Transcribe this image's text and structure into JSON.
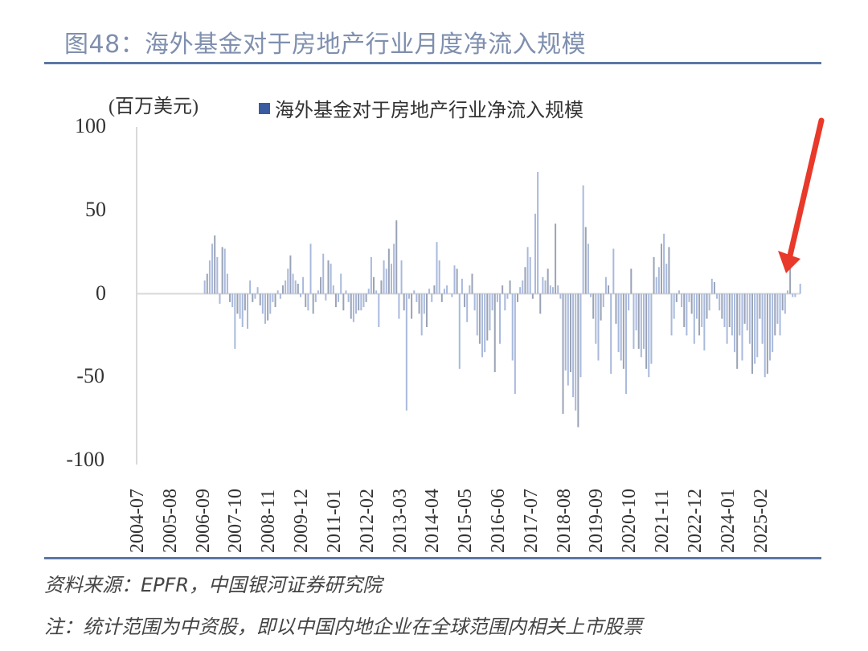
{
  "title": "图48：海外基金对于房地产行业月度净流入规模",
  "unit_label": "(百万美元)",
  "legend_label": "海外基金对于房地产行业净流入规模",
  "source": "资料来源：EPFR，中国银河证券研究院",
  "note": "注：统计范围为中资股，即以中国内地企业在全球范围内相关上市股票",
  "colors": {
    "title": "#7f8fae",
    "rule": "#5c77a5",
    "bar_light": "#a9b9dc",
    "bar_dark": "#9aa3b5",
    "legend": "#3a5ba0",
    "arrow": "#e8392a"
  },
  "chart_data": {
    "type": "bar",
    "title": "海外基金对于房地产行业净流入规模",
    "xlabel": "",
    "ylabel": "(百万美元)",
    "ylim": [
      -100,
      100
    ],
    "yticks": [
      100,
      50,
      0,
      -50,
      -100
    ],
    "grid": false,
    "legend_position": "top",
    "start_month": "2004-07",
    "xtick_labels": [
      "2004-07",
      "2005-08",
      "2006-09",
      "2007-10",
      "2008-11",
      "2009-12",
      "2011-01",
      "2012-02",
      "2013-03",
      "2014-04",
      "2015-05",
      "2016-06",
      "2017-07",
      "2018-08",
      "2019-09",
      "2020-10",
      "2021-11",
      "2022-12",
      "2024-01",
      "2025-02"
    ],
    "series": [
      {
        "name": "海外基金对于房地产行业净流入规模",
        "values": [
          0,
          0,
          0,
          0,
          0,
          0,
          0,
          0,
          0,
          0,
          0,
          0,
          0,
          0,
          0,
          0,
          0,
          0,
          0,
          0,
          0,
          0,
          0,
          0,
          0,
          0,
          8,
          12,
          20,
          30,
          35,
          22,
          -6,
          28,
          27,
          12,
          -5,
          -8,
          -33,
          -12,
          -15,
          -20,
          -10,
          -21,
          8,
          -5,
          -3,
          4,
          -7,
          -12,
          -18,
          -16,
          -12,
          -5,
          -8,
          2,
          -3,
          5,
          8,
          15,
          23,
          12,
          8,
          6,
          -2,
          10,
          -8,
          -10,
          30,
          -12,
          -5,
          2,
          10,
          24,
          -4,
          20,
          18,
          5,
          -8,
          -5,
          12,
          -10,
          2,
          -5,
          -15,
          -17,
          -12,
          -10,
          -10,
          -8,
          -5,
          3,
          22,
          10,
          2,
          -20,
          8,
          20,
          15,
          27,
          18,
          30,
          44,
          -15,
          20,
          -10,
          -70,
          -3,
          -15,
          2,
          -5,
          -12,
          -25,
          -12,
          -20,
          3,
          -5,
          5,
          31,
          20,
          -5,
          3,
          5,
          0,
          -2,
          17,
          15,
          -45,
          9,
          -8,
          -17,
          5,
          12,
          -10,
          -25,
          -30,
          -38,
          -35,
          -28,
          -22,
          -10,
          -47,
          -5,
          -30,
          5,
          -10,
          -3,
          8,
          -40,
          -60,
          -5,
          4,
          8,
          16,
          28,
          22,
          -3,
          48,
          73,
          -12,
          10,
          8,
          15,
          5,
          4,
          42,
          5,
          -3,
          -72,
          -46,
          -55,
          -47,
          -62,
          -70,
          -80,
          -50,
          65,
          40,
          30,
          -2,
          -15,
          -30,
          -40,
          -16,
          -8,
          10,
          5,
          -48,
          27,
          -18,
          -35,
          -40,
          -45,
          -60,
          -10,
          15,
          -33,
          -22,
          -33,
          -38,
          -33,
          -45,
          -50,
          -42,
          22,
          10,
          16,
          30,
          36,
          18,
          28,
          -25,
          -15,
          -5,
          2,
          -8,
          -20,
          -25,
          -5,
          -12,
          -30,
          -15,
          -25,
          -20,
          -34,
          -15,
          -10,
          9,
          7,
          -3,
          -10,
          -15,
          -20,
          -30,
          -20,
          -25,
          -35,
          -45,
          -25,
          -40,
          -18,
          -22,
          -30,
          -48,
          -42,
          -38,
          -15,
          -30,
          -50,
          -48,
          -40,
          -35,
          -25,
          -18,
          -25,
          -10,
          -12,
          2,
          22,
          -2,
          -2,
          0,
          6
        ]
      }
    ]
  }
}
